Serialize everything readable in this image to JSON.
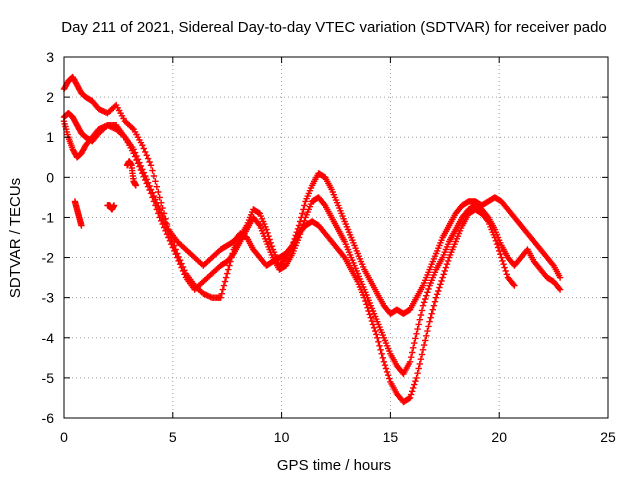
{
  "chart_data": {
    "type": "scatter",
    "title": "Day 211 of 2021, Sidereal Day-to-day VTEC variation (SDTVAR) for receiver pado",
    "xlabel": "GPS time / hours",
    "ylabel": "SDTVAR / TECUs",
    "xlim": [
      0,
      25
    ],
    "ylim": [
      -6,
      3
    ],
    "xticks": [
      0,
      5,
      10,
      15,
      20,
      25
    ],
    "yticks": [
      -6,
      -5,
      -4,
      -3,
      -2,
      -1,
      0,
      1,
      2,
      3
    ],
    "grid": true,
    "marker": "+",
    "color": "#ff0000",
    "series": [
      {
        "name": "track-1",
        "x": [
          0.0,
          0.2,
          0.4,
          0.6,
          0.8,
          1.0,
          1.3,
          1.6,
          2.0,
          2.4,
          2.8,
          3.2,
          3.6,
          4.0,
          4.4,
          4.8,
          5.2,
          5.6,
          6.0,
          6.4,
          6.8,
          7.2,
          7.5,
          7.8,
          8.1,
          8.4,
          8.7,
          9.0,
          9.3,
          9.6,
          9.9,
          10.2,
          10.5,
          10.8,
          11.1,
          11.4,
          11.7,
          12.0,
          12.3,
          12.6,
          12.9,
          13.2,
          13.5,
          13.8,
          14.1,
          14.4,
          14.7,
          15.0,
          15.3,
          15.6,
          15.9,
          16.2,
          16.5,
          16.8,
          17.1,
          17.4,
          17.7,
          18.0,
          18.3,
          18.6,
          18.9,
          19.2,
          19.5,
          19.8,
          20.1,
          20.4,
          20.7,
          21.0,
          21.3,
          21.6,
          21.9,
          22.2,
          22.5,
          22.8
        ],
        "y": [
          2.2,
          2.4,
          2.5,
          2.3,
          2.1,
          2.0,
          1.9,
          1.7,
          1.6,
          1.8,
          1.4,
          1.2,
          0.8,
          0.3,
          -0.5,
          -1.3,
          -1.9,
          -2.4,
          -2.7,
          -2.9,
          -3.0,
          -3.0,
          -2.4,
          -1.8,
          -1.5,
          -1.2,
          -0.8,
          -0.9,
          -1.3,
          -1.8,
          -2.2,
          -2.0,
          -1.7,
          -1.2,
          -0.6,
          -0.2,
          0.1,
          0.0,
          -0.3,
          -0.7,
          -1.1,
          -1.5,
          -1.9,
          -2.3,
          -2.6,
          -2.9,
          -3.2,
          -3.4,
          -3.3,
          -3.4,
          -3.3,
          -3.0,
          -2.7,
          -2.3,
          -1.9,
          -1.5,
          -1.2,
          -0.9,
          -0.7,
          -0.6,
          -0.6,
          -0.7,
          -0.6,
          -0.5,
          -0.6,
          -0.8,
          -1.0,
          -1.2,
          -1.4,
          -1.6,
          -1.8,
          -2.0,
          -2.2,
          -2.5
        ]
      },
      {
        "name": "track-2",
        "x": [
          0.0,
          0.2,
          0.4,
          0.6,
          0.8,
          1.0,
          1.3,
          1.6,
          2.0,
          2.4,
          2.8,
          3.2,
          3.6,
          4.0,
          4.4,
          4.8,
          5.2,
          5.6,
          6.0,
          6.4,
          6.8,
          7.2,
          7.5,
          7.8,
          8.1,
          8.4,
          8.7,
          9.0,
          9.3,
          9.6,
          9.9,
          10.2,
          10.5,
          10.8,
          11.1,
          11.4,
          11.7,
          12.0,
          12.3,
          12.6,
          12.9,
          13.2,
          13.5,
          13.8,
          14.1,
          14.4,
          14.7,
          15.0,
          15.3,
          15.6,
          15.9,
          16.2,
          16.5,
          16.8,
          17.1,
          17.4,
          17.7,
          18.0,
          18.3,
          18.6,
          18.9,
          19.2,
          19.5,
          19.8,
          20.1,
          20.4,
          20.7,
          21.0,
          21.3,
          21.6,
          21.9,
          22.2,
          22.5,
          22.8
        ],
        "y": [
          1.5,
          1.6,
          1.5,
          1.3,
          1.1,
          1.0,
          0.9,
          1.1,
          1.3,
          1.2,
          1.0,
          0.6,
          0.1,
          -0.4,
          -1.0,
          -1.5,
          -2.0,
          -2.5,
          -2.8,
          -2.6,
          -2.4,
          -2.2,
          -2.1,
          -1.9,
          -1.6,
          -1.3,
          -1.0,
          -1.2,
          -1.6,
          -2.0,
          -2.3,
          -2.2,
          -1.9,
          -1.5,
          -1.0,
          -0.6,
          -0.5,
          -0.7,
          -1.0,
          -1.3,
          -1.6,
          -2.0,
          -2.4,
          -2.8,
          -3.2,
          -3.6,
          -4.0,
          -4.4,
          -4.7,
          -4.9,
          -4.6,
          -3.9,
          -3.2,
          -2.7,
          -2.3,
          -2.0,
          -1.6,
          -1.3,
          -1.0,
          -0.8,
          -0.7,
          -0.8,
          -1.0,
          -1.3,
          -1.7,
          -2.0,
          -2.2,
          -2.0,
          -1.8,
          -2.1,
          -2.3,
          -2.5,
          -2.6,
          -2.8
        ]
      },
      {
        "name": "track-3",
        "x": [
          0.0,
          0.2,
          0.4,
          0.6,
          0.8,
          1.0,
          1.3,
          1.6,
          2.0,
          2.4,
          2.8,
          3.2,
          3.6,
          4.0,
          4.4,
          4.8,
          5.2,
          5.6,
          6.0,
          6.4,
          6.8,
          7.2,
          7.5,
          7.8,
          8.1,
          8.4,
          8.7,
          9.0,
          9.3,
          9.6,
          9.9,
          10.2,
          10.5,
          10.8,
          11.1,
          11.4,
          11.7,
          12.0,
          12.3,
          12.6,
          12.9,
          13.2,
          13.5,
          13.8,
          14.1,
          14.4,
          14.7,
          15.0,
          15.3,
          15.6,
          15.9,
          16.2,
          16.5,
          16.8,
          17.1,
          17.4,
          17.7,
          18.0,
          18.3,
          18.6,
          18.9,
          19.2,
          19.5,
          19.8,
          20.1,
          20.4,
          20.7
        ],
        "y": [
          1.4,
          1.0,
          0.7,
          0.5,
          0.6,
          0.8,
          1.0,
          1.2,
          1.3,
          1.3,
          1.0,
          0.7,
          0.2,
          -0.3,
          -0.8,
          -1.3,
          -1.6,
          -1.8,
          -2.0,
          -2.2,
          -2.0,
          -1.8,
          -1.7,
          -1.6,
          -1.4,
          -1.5,
          -1.8,
          -2.0,
          -2.2,
          -2.1,
          -2.0,
          -1.9,
          -1.7,
          -1.4,
          -1.2,
          -1.1,
          -1.2,
          -1.4,
          -1.6,
          -1.8,
          -2.0,
          -2.3,
          -2.6,
          -3.0,
          -3.5,
          -4.0,
          -4.6,
          -5.1,
          -5.4,
          -5.6,
          -5.5,
          -5.0,
          -4.3,
          -3.6,
          -3.0,
          -2.5,
          -2.0,
          -1.6,
          -1.2,
          -0.9,
          -0.8,
          -0.9,
          -1.1,
          -1.5,
          -2.0,
          -2.5,
          -2.7
        ]
      },
      {
        "name": "track-4",
        "x": [
          0.5,
          0.6,
          0.7,
          0.8,
          2.0,
          2.1,
          2.2,
          2.3,
          2.9,
          3.0,
          3.1,
          3.2,
          3.3
        ],
        "y": [
          -0.6,
          -0.8,
          -1.0,
          -1.2,
          -0.7,
          -0.7,
          -0.8,
          -0.7,
          0.3,
          0.4,
          0.3,
          -0.1,
          -0.2
        ]
      }
    ]
  }
}
